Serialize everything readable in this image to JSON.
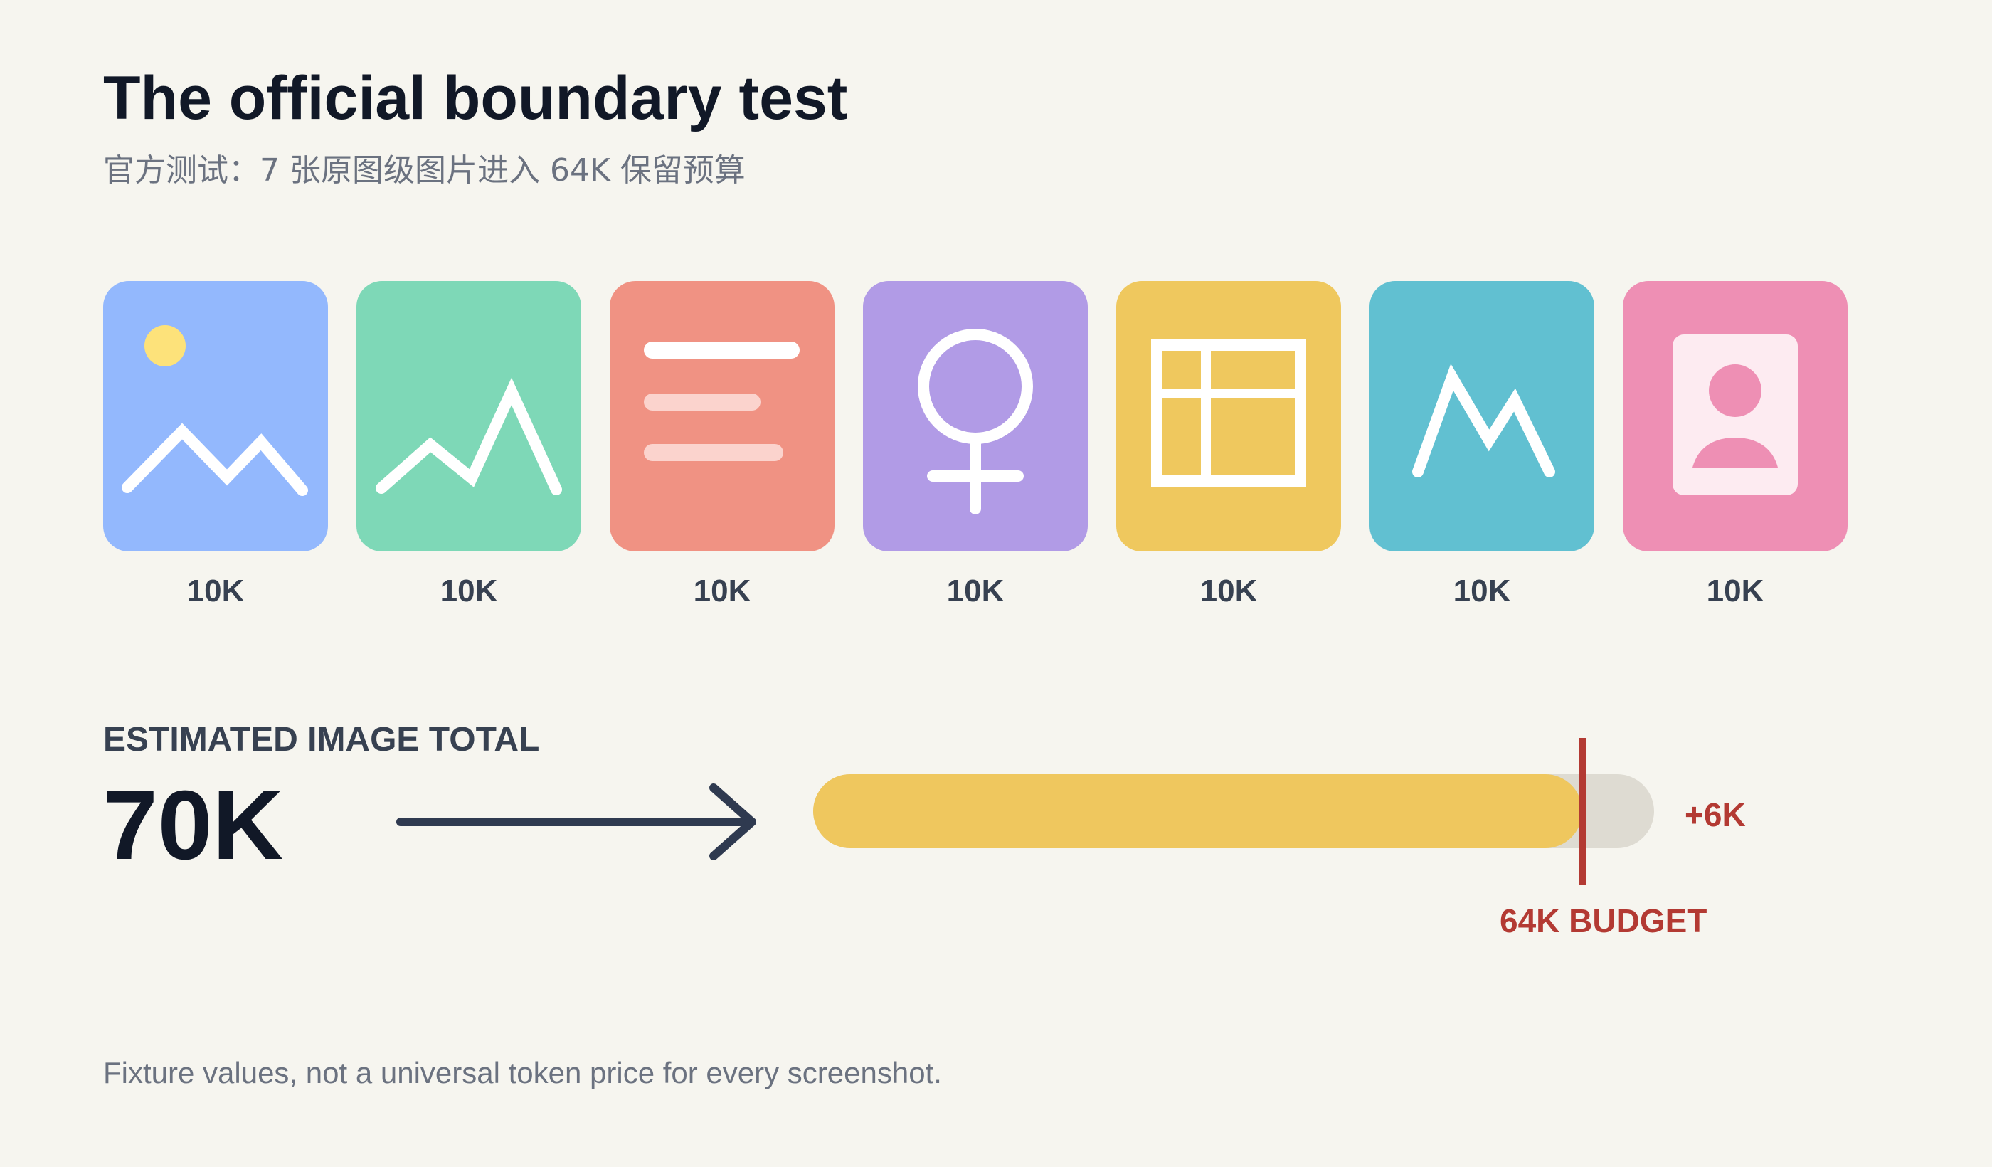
{
  "header": {
    "title": "The official boundary test",
    "subtitle": "官方测试：7 张原图级图片进入 64K 保留预算"
  },
  "tiles": [
    {
      "icon": "landscape-photo-icon",
      "label": "10K",
      "color": "#93b8fd"
    },
    {
      "icon": "line-chart-icon",
      "label": "10K",
      "color": "#7ed8b7"
    },
    {
      "icon": "document-lines-icon",
      "label": "10K",
      "color": "#f09283"
    },
    {
      "icon": "female-symbol-icon",
      "label": "10K",
      "color": "#b19be6"
    },
    {
      "icon": "table-grid-icon",
      "label": "10K",
      "color": "#efc85e"
    },
    {
      "icon": "mountain-peaks-icon",
      "label": "10K",
      "color": "#61c0d1"
    },
    {
      "icon": "portrait-card-icon",
      "label": "10K",
      "color": "#ee8fb4"
    }
  ],
  "summary": {
    "label": "ESTIMATED IMAGE TOTAL",
    "value": "70K",
    "overage": "+6K",
    "budget_label": "64K BUDGET"
  },
  "progress": {
    "total": 70,
    "budget": 64,
    "unit": "K",
    "fill_color": "#efc75e",
    "track_color": "#dedbd2",
    "budget_color": "#b33a33"
  },
  "footnote": "Fixture values, not a universal token price for every screenshot."
}
